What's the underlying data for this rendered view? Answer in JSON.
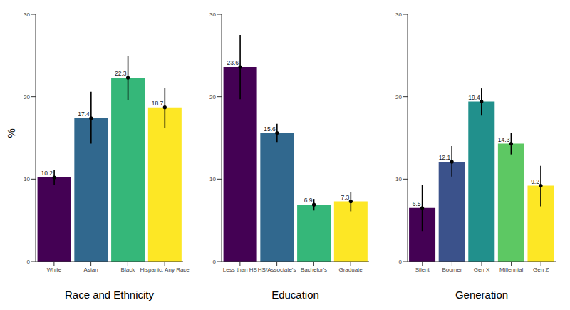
{
  "chart_data": [
    {
      "type": "bar",
      "x_label": "Race and Ethnicity",
      "y_label": "%",
      "categories": [
        "White",
        "Asian",
        "Black",
        "Hispanic, Any Race"
      ],
      "values": [
        10.2,
        17.4,
        22.3,
        18.7
      ],
      "errors": [
        [
          0.9,
          0.9
        ],
        [
          3.1,
          3.2
        ],
        [
          2.7,
          2.6
        ],
        [
          2.5,
          2.4
        ]
      ],
      "colors": [
        "#440154",
        "#31688e",
        "#35b779",
        "#fde725"
      ],
      "ylim": [
        0,
        30
      ],
      "yticks": [
        0,
        10,
        20,
        30
      ],
      "data_labels": true
    },
    {
      "type": "bar",
      "x_label": "Education",
      "categories": [
        "Less than HS",
        "HS/Associate's",
        "Bachelor's",
        "Graduate"
      ],
      "values": [
        23.6,
        15.6,
        6.9,
        7.3
      ],
      "errors": [
        [
          3.9,
          3.9
        ],
        [
          1.1,
          1.1
        ],
        [
          0.7,
          0.7
        ],
        [
          1.2,
          1.1
        ]
      ],
      "colors": [
        "#440154",
        "#31688e",
        "#35b779",
        "#fde725"
      ],
      "ylim": [
        0,
        30
      ],
      "yticks": [
        0,
        10,
        20,
        30
      ],
      "data_labels": true
    },
    {
      "type": "bar",
      "x_label": "Generation",
      "categories": [
        "Silent",
        "Boomer",
        "Gen X",
        "Millennial",
        "Gen Z"
      ],
      "values": [
        6.5,
        12.1,
        19.4,
        14.3,
        9.2
      ],
      "errors": [
        [
          2.8,
          2.8
        ],
        [
          1.8,
          1.9
        ],
        [
          1.7,
          1.6
        ],
        [
          1.3,
          1.3
        ],
        [
          2.5,
          2.4
        ]
      ],
      "colors": [
        "#440154",
        "#3b528b",
        "#21908c",
        "#5dc863",
        "#fde725"
      ],
      "ylim": [
        0,
        30
      ],
      "yticks": [
        0,
        10,
        20,
        30
      ],
      "data_labels": true
    }
  ]
}
